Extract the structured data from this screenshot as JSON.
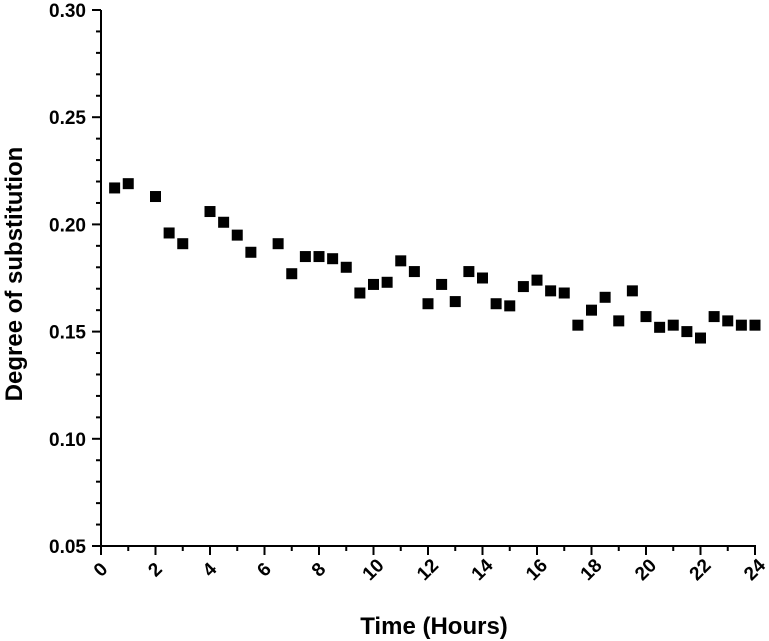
{
  "chart_data": {
    "type": "scatter",
    "title": "",
    "xlabel": "Time (Hours)",
    "ylabel": "Degree of substitution",
    "xlim": [
      0,
      24
    ],
    "ylim": [
      0.05,
      0.3
    ],
    "x_ticks": [
      "0",
      "2",
      "4",
      "6",
      "8",
      "10",
      "12",
      "14",
      "16",
      "18",
      "20",
      "22",
      "24"
    ],
    "y_ticks": [
      "0.05",
      "0.10",
      "0.15",
      "0.20",
      "0.25",
      "0.30"
    ],
    "grid": false,
    "legend": "none",
    "marker": "square",
    "color": "#000000",
    "series": [
      {
        "x": [
          0.5,
          1,
          2,
          2.5,
          3,
          4,
          4.5,
          5,
          5.5,
          6.5,
          7,
          7.5,
          8,
          8.5,
          9,
          9.5,
          10,
          10.5,
          11,
          11.5,
          12,
          12.5,
          13,
          13.5,
          14,
          14.5,
          15,
          15.5,
          16,
          16.5,
          17,
          17.5,
          18,
          18.5,
          19,
          19.5,
          20,
          20.5,
          21,
          21.5,
          22,
          22.5,
          23,
          23.5,
          24
        ],
        "y": [
          0.217,
          0.219,
          0.213,
          0.196,
          0.191,
          0.206,
          0.201,
          0.195,
          0.187,
          0.191,
          0.177,
          0.185,
          0.185,
          0.184,
          0.18,
          0.168,
          0.172,
          0.173,
          0.183,
          0.178,
          0.163,
          0.172,
          0.164,
          0.178,
          0.175,
          0.163,
          0.162,
          0.171,
          0.174,
          0.169,
          0.168,
          0.153,
          0.16,
          0.166,
          0.155,
          0.169,
          0.157,
          0.152,
          0.153,
          0.15,
          0.147,
          0.157,
          0.155,
          0.153,
          0.153
        ]
      }
    ]
  }
}
